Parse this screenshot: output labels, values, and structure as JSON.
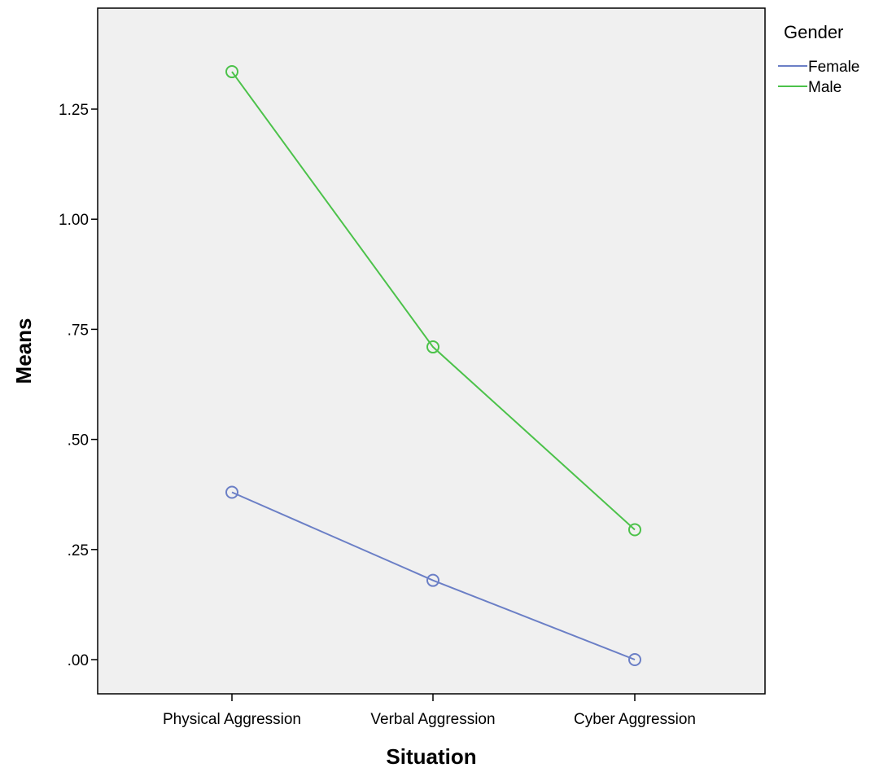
{
  "chart_data": {
    "type": "line",
    "title": "",
    "xlabel": "Situation",
    "ylabel": "Means",
    "categories": [
      "Physical Aggression",
      "Verbal Aggression",
      "Cyber Aggression"
    ],
    "y_ticks": [
      0,
      0.25,
      0.5,
      0.75,
      1.0,
      1.25
    ],
    "y_tick_labels": [
      ".00",
      ".25",
      ".50",
      ".75",
      "1.00",
      "1.25"
    ],
    "ylim": [
      -0.08,
      1.45
    ],
    "grid": false,
    "markers": "open-circle",
    "legend": {
      "title": "Gender",
      "placement": "top-right-outside"
    },
    "series": [
      {
        "name": "Female",
        "values": [
          0.38,
          0.18,
          0.0
        ],
        "color": "#6b7fc6"
      },
      {
        "name": "Male",
        "values": [
          1.335,
          0.71,
          0.295
        ],
        "color": "#4cc24a"
      }
    ],
    "plot_background": "#f0f0f0"
  }
}
